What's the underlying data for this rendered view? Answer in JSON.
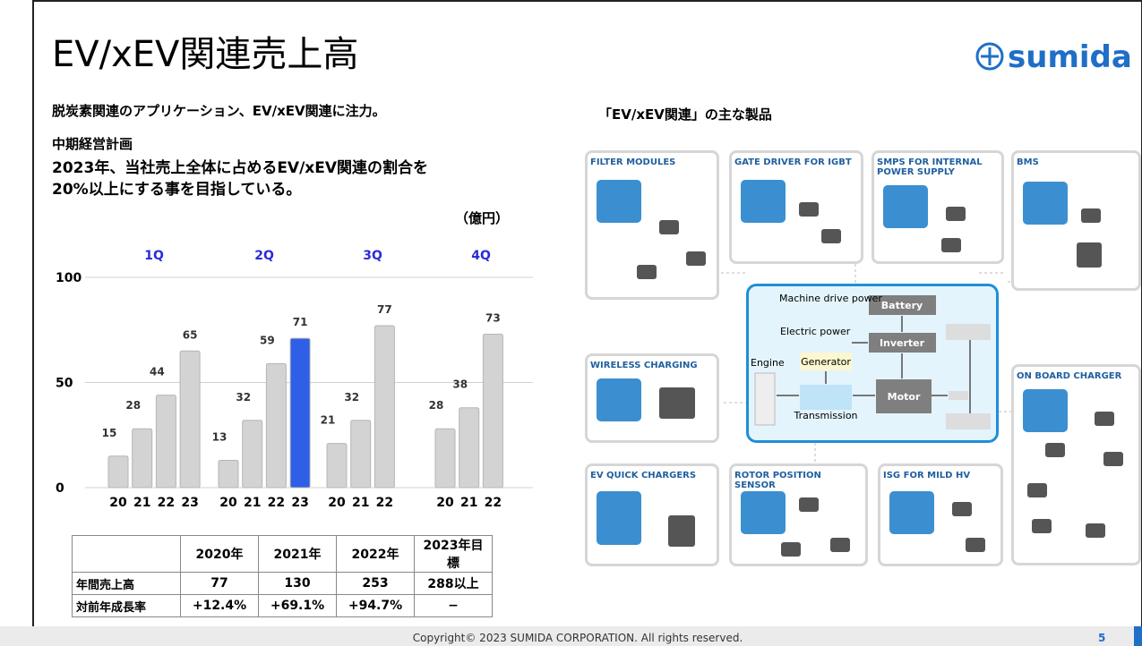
{
  "header": {
    "title": "EV/xEV関連売上高",
    "logo": "sumida"
  },
  "left": {
    "lead": "脱炭素関連のアプリケーション、EV/xEV関連に注力。",
    "plan_heading": "中期経営計画",
    "plan_lines": [
      "2023年、当社売上全体に占めるEV/xEV関連の割合を",
      "20%以上にする事を目指している。"
    ]
  },
  "chart_data": {
    "type": "bar",
    "unit": "（億円）",
    "groups": [
      {
        "name": "1Q",
        "categories": [
          "20",
          "21",
          "22",
          "23"
        ],
        "values": [
          15,
          28,
          44,
          65
        ],
        "colors": [
          "#d3d3d3",
          "#d3d3d3",
          "#d3d3d3",
          "#d3d3d3"
        ]
      },
      {
        "name": "2Q",
        "categories": [
          "20",
          "21",
          "22",
          "23"
        ],
        "values": [
          13,
          32,
          59,
          71
        ],
        "colors": [
          "#d3d3d3",
          "#d3d3d3",
          "#d3d3d3",
          "#2f5fe6"
        ]
      },
      {
        "name": "3Q",
        "categories": [
          "20",
          "21",
          "22"
        ],
        "values": [
          21,
          32,
          77
        ],
        "colors": [
          "#d3d3d3",
          "#d3d3d3",
          "#d3d3d3"
        ]
      },
      {
        "name": "4Q",
        "categories": [
          "20",
          "21",
          "22"
        ],
        "values": [
          28,
          38,
          73
        ],
        "colors": [
          "#d3d3d3",
          "#d3d3d3",
          "#d3d3d3"
        ]
      }
    ],
    "group_color": "#2b2bd9",
    "ylim": [
      0,
      100
    ],
    "yticks": [
      0,
      50,
      100
    ],
    "grid": true
  },
  "table": {
    "header": [
      "2020年",
      "2021年",
      "2022年",
      "2023年目標"
    ],
    "rows": [
      [
        "年間売上高",
        "77",
        "130",
        "253",
        "288以上"
      ],
      [
        "対前年成長率",
        "+12.4%",
        "+69.1%",
        "+94.7%",
        "−"
      ]
    ]
  },
  "products": {
    "heading": "「EV/xEV関連」の主な製品",
    "items": [
      "FILTER MODULES",
      "GATE DRIVER FOR IGBT",
      "SMPS FOR INTERNAL POWER SUPPLY",
      "BMS",
      "WIRELESS CHARGING",
      "ON BOARD CHARGER",
      "EV QUICK CHARGERS",
      "ROTOR POSITION SENSOR",
      "ISG FOR MILD HV"
    ]
  },
  "system": {
    "machine": "Machine drive power",
    "battery": "Battery",
    "electric": "Electric power",
    "inverter": "Inverter",
    "engine": "Engine",
    "generator": "Generator",
    "motor": "Motor",
    "transmission": "Transmission"
  },
  "footer": {
    "copyright": "Copyright© 2023 SUMIDA CORPORATION. All rights reserved.",
    "page": "5"
  }
}
